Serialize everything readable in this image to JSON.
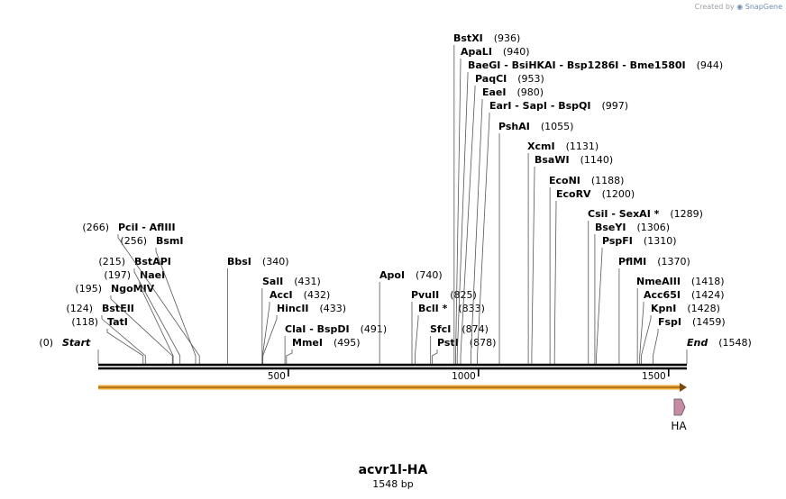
{
  "credit": {
    "prefix": "Created by",
    "brand": "SnapGene"
  },
  "sequence": {
    "name": "acvr1l-HA",
    "length_label": "1548 bp",
    "length": 1548
  },
  "scale_ticks": [
    {
      "pos": 500,
      "label": "500"
    },
    {
      "pos": 1000,
      "label": "1000"
    },
    {
      "pos": 1500,
      "label": "1500"
    }
  ],
  "feature": {
    "name": "HA",
    "color": "#c98aa6"
  },
  "colors": {
    "orf": "#f0a830",
    "backbone": "#000000"
  },
  "sites": [
    {
      "names": [
        "Start"
      ],
      "num": "(0)",
      "pos": 0,
      "italic": true,
      "side": "left"
    },
    {
      "names": [
        "TatI"
      ],
      "num": "(118)",
      "pos": 118,
      "side": "left"
    },
    {
      "names": [
        "BstEII"
      ],
      "num": "(124)",
      "pos": 124,
      "side": "left"
    },
    {
      "names": [
        "NgoMIV"
      ],
      "num": "(195)",
      "pos": 195,
      "side": "left"
    },
    {
      "names": [
        "NaeI"
      ],
      "num": "(197)",
      "pos": 197,
      "side": "left"
    },
    {
      "names": [
        "BstAPI"
      ],
      "num": "(215)",
      "pos": 215,
      "side": "left"
    },
    {
      "names": [
        "BsmI"
      ],
      "num": "(256)",
      "pos": 256,
      "side": "left"
    },
    {
      "names": [
        "PciI",
        "AflIII"
      ],
      "num": "(266)",
      "pos": 266,
      "side": "left"
    },
    {
      "names": [
        "BbsI"
      ],
      "num": "(340)",
      "pos": 340
    },
    {
      "names": [
        "SalI"
      ],
      "num": "(431)",
      "pos": 431
    },
    {
      "names": [
        "AccI"
      ],
      "num": "(432)",
      "pos": 432
    },
    {
      "names": [
        "HincII"
      ],
      "num": "(433)",
      "pos": 433
    },
    {
      "names": [
        "ClaI",
        "BspDI"
      ],
      "num": "(491)",
      "pos": 491
    },
    {
      "names": [
        "MmeI"
      ],
      "num": "(495)",
      "pos": 495
    },
    {
      "names": [
        "ApoI"
      ],
      "num": "(740)",
      "pos": 740
    },
    {
      "names": [
        "PvuII"
      ],
      "num": "(825)",
      "pos": 825
    },
    {
      "names": [
        "BclI *"
      ],
      "num": "(833)",
      "pos": 833
    },
    {
      "names": [
        "SfcI"
      ],
      "num": "(874)",
      "pos": 874
    },
    {
      "names": [
        "PstI"
      ],
      "num": "(878)",
      "pos": 878
    },
    {
      "names": [
        "BstXI"
      ],
      "num": "(936)",
      "pos": 936
    },
    {
      "names": [
        "ApaLI"
      ],
      "num": "(940)",
      "pos": 940
    },
    {
      "names": [
        "BaeGI",
        "BsiHKAI",
        "Bsp1286I",
        "Bme1580I"
      ],
      "num": "(944)",
      "pos": 944
    },
    {
      "names": [
        "PaqCI"
      ],
      "num": "(953)",
      "pos": 953
    },
    {
      "names": [
        "EaeI"
      ],
      "num": "(980)",
      "pos": 980
    },
    {
      "names": [
        "EarI",
        "SapI",
        "BspQI"
      ],
      "num": "(997)",
      "pos": 997
    },
    {
      "names": [
        "PshAI"
      ],
      "num": "(1055)",
      "pos": 1055
    },
    {
      "names": [
        "XcmI"
      ],
      "num": "(1131)",
      "pos": 1131
    },
    {
      "names": [
        "BsaWI"
      ],
      "num": "(1140)",
      "pos": 1140
    },
    {
      "names": [
        "EcoNI"
      ],
      "num": "(1188)",
      "pos": 1188
    },
    {
      "names": [
        "EcoRV"
      ],
      "num": "(1200)",
      "pos": 1200
    },
    {
      "names": [
        "CsiI",
        "SexAI *"
      ],
      "num": "(1289)",
      "pos": 1289
    },
    {
      "names": [
        "BseYI"
      ],
      "num": "(1306)",
      "pos": 1306
    },
    {
      "names": [
        "PspFI"
      ],
      "num": "(1310)",
      "pos": 1310
    },
    {
      "names": [
        "PflMI"
      ],
      "num": "(1370)",
      "pos": 1370
    },
    {
      "names": [
        "NmeAIII"
      ],
      "num": "(1418)",
      "pos": 1418
    },
    {
      "names": [
        "Acc65I"
      ],
      "num": "(1424)",
      "pos": 1424
    },
    {
      "names": [
        "KpnI"
      ],
      "num": "(1428)",
      "pos": 1428
    },
    {
      "names": [
        "FspI"
      ],
      "num": "(1459)",
      "pos": 1459
    },
    {
      "names": [
        "End"
      ],
      "num": "(1548)",
      "pos": 1548,
      "italic": true
    }
  ]
}
